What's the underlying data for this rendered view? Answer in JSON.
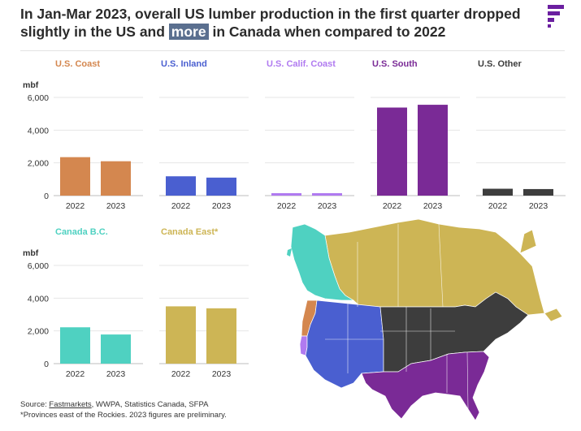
{
  "title": {
    "before": "In Jan-Mar 2023, overall US lumber production in the first quarter dropped slightly in the US and ",
    "highlight": "more",
    "after": " in Canada when compared to 2022"
  },
  "footer": {
    "source_prefix": "Source: ",
    "source_link": "Fastmarkets",
    "source_rest": ", WWPA, Statistics Canada, SFPA",
    "note": "*Provinces east of the Rockies. 2023 figures are preliminary."
  },
  "map": {
    "icon": "north-america-region-map",
    "regions": [
      {
        "name": "U.S. Coast",
        "color": "#d4874f"
      },
      {
        "name": "U.S. Inland",
        "color": "#4a5fd0"
      },
      {
        "name": "U.S. Calif. Coast",
        "color": "#b07af0"
      },
      {
        "name": "U.S. South",
        "color": "#7a2a96"
      },
      {
        "name": "U.S. Other",
        "color": "#444444"
      },
      {
        "name": "Canada B.C.",
        "color": "#4fd1c1"
      },
      {
        "name": "Canada East*",
        "color": "#cdb555"
      }
    ]
  },
  "chart_data": [
    {
      "type": "bar",
      "title": "U.S. Coast",
      "color": "#d4874f",
      "categories": [
        "2022",
        "2023"
      ],
      "values": [
        2350,
        2100
      ],
      "ylabel": "mbf",
      "ylim": [
        0,
        6000
      ],
      "yticks": [
        "6,000",
        "4,000",
        "2,000",
        "0"
      ],
      "grid": true
    },
    {
      "type": "bar",
      "title": "U.S. Inland",
      "color": "#4a5fd0",
      "categories": [
        "2022",
        "2023"
      ],
      "values": [
        1180,
        1100
      ],
      "ylim": [
        0,
        6000
      ],
      "grid": true
    },
    {
      "type": "bar",
      "title": "U.S. Calif. Coast",
      "color": "#b07af0",
      "categories": [
        "2022",
        "2023"
      ],
      "values": [
        150,
        150
      ],
      "ylim": [
        0,
        6000
      ],
      "grid": true
    },
    {
      "type": "bar",
      "title": "U.S. South",
      "color": "#7a2a96",
      "categories": [
        "2022",
        "2023"
      ],
      "values": [
        5380,
        5550
      ],
      "ylim": [
        0,
        6000
      ],
      "grid": true
    },
    {
      "type": "bar",
      "title": "U.S. Other",
      "color": "#3d3d3d",
      "categories": [
        "2022",
        "2023"
      ],
      "values": [
        420,
        400
      ],
      "ylim": [
        0,
        6000
      ],
      "grid": true
    },
    {
      "type": "bar",
      "title": "Canada B.C.",
      "color": "#4fd1c1",
      "categories": [
        "2022",
        "2023"
      ],
      "values": [
        2220,
        1780
      ],
      "ylabel": "mbf",
      "ylim": [
        0,
        6000
      ],
      "yticks": [
        "6,000",
        "4,000",
        "2,000",
        "0"
      ],
      "grid": true
    },
    {
      "type": "bar",
      "title": "Canada East*",
      "color": "#cdb555",
      "categories": [
        "2022",
        "2023"
      ],
      "values": [
        3500,
        3380
      ],
      "ylim": [
        0,
        6000
      ],
      "grid": true
    }
  ]
}
